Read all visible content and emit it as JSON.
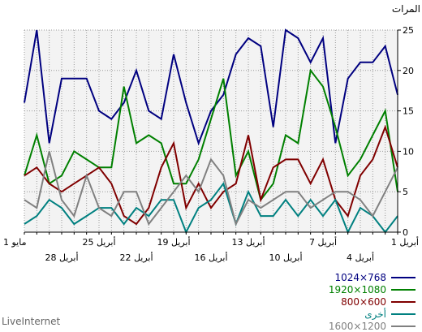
{
  "chart_data": {
    "type": "line",
    "ylabel": "المرات",
    "ylim": [
      0,
      25
    ],
    "yticks": [
      0,
      5,
      10,
      15,
      20,
      25
    ],
    "grid": true,
    "legend_position": "bottom-right",
    "x_days": [
      31,
      30,
      29,
      28,
      27,
      26,
      25,
      24,
      23,
      22,
      21,
      20,
      19,
      18,
      17,
      16,
      15,
      14,
      13,
      12,
      11,
      10,
      9,
      8,
      7,
      6,
      5,
      4,
      3,
      2,
      1
    ],
    "x_labels_row1": [
      {
        "day": 31,
        "label": "1 مايو"
      },
      {
        "day": 25,
        "label": "25 أبريل"
      },
      {
        "day": 19,
        "label": "19 أبريل"
      },
      {
        "day": 13,
        "label": "13 أبريل"
      },
      {
        "day": 7,
        "label": "7 أبريل"
      },
      {
        "day": 1,
        "label": "1 أبريل"
      }
    ],
    "x_labels_row2": [
      {
        "day": 28,
        "label": "28 أبريل"
      },
      {
        "day": 22,
        "label": "22 أبريل"
      },
      {
        "day": 16,
        "label": "16 أبريل"
      },
      {
        "day": 10,
        "label": "10 أبريل"
      },
      {
        "day": 4,
        "label": "4 أبريل"
      }
    ],
    "series": [
      {
        "name": "1024×768",
        "color": "#000080",
        "values": [
          16,
          25,
          11,
          19,
          19,
          19,
          15,
          14,
          16,
          20,
          15,
          14,
          22,
          16,
          11,
          15,
          17,
          22,
          24,
          23,
          13,
          25,
          24,
          21,
          24,
          11,
          19,
          21,
          21,
          23,
          17
        ]
      },
      {
        "name": "1920×1080",
        "color": "#008000",
        "values": [
          7,
          12,
          6,
          7,
          10,
          9,
          8,
          8,
          18,
          11,
          12,
          11,
          6,
          6,
          9,
          14,
          19,
          7,
          10,
          4,
          6,
          12,
          11,
          20,
          18,
          13,
          7,
          9,
          12,
          15,
          5
        ]
      },
      {
        "name": "800×600",
        "color": "#800000",
        "values": [
          7,
          8,
          6,
          5,
          6,
          7,
          8,
          6,
          2,
          1,
          3,
          8,
          11,
          3,
          6,
          3,
          5,
          6,
          12,
          4,
          8,
          9,
          9,
          6,
          9,
          4,
          2,
          7,
          9,
          13,
          8
        ]
      },
      {
        "name": "أخرى",
        "color": "#008080",
        "values": [
          1,
          2,
          4,
          3,
          1,
          2,
          3,
          3,
          1,
          3,
          2,
          4,
          4,
          0,
          3,
          4,
          6,
          1,
          5,
          2,
          2,
          4,
          2,
          4,
          2,
          4,
          0,
          3,
          2,
          0,
          2
        ]
      },
      {
        "name": "1600×1200",
        "color": "#808080",
        "values": [
          4,
          3,
          10,
          4,
          2,
          7,
          3,
          2,
          5,
          5,
          1,
          3,
          5,
          7,
          5,
          9,
          7,
          1,
          4,
          3,
          4,
          5,
          5,
          3,
          4,
          5,
          5,
          4,
          2,
          5,
          8
        ]
      }
    ]
  },
  "footer": "LiveInternet"
}
